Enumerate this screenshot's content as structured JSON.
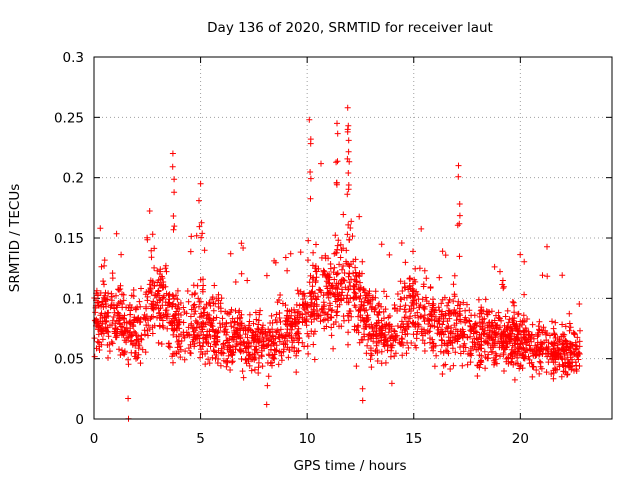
{
  "chart_data": {
    "type": "scatter",
    "title": "Day 136 of 2020, SRMTID for receiver laut",
    "xlabel": "GPS time / hours",
    "ylabel": "SRMTID / TECUs",
    "xlim": [
      0,
      24.3
    ],
    "ylim": [
      0,
      0.3
    ],
    "x_ticks": [
      0,
      5,
      10,
      15,
      20
    ],
    "x_tick_labels": [
      "0",
      "5",
      "10",
      "15",
      "20"
    ],
    "y_ticks": [
      0,
      0.05,
      0.1,
      0.15,
      0.2,
      0.25,
      0.3
    ],
    "y_tick_labels": [
      "0",
      "0.05",
      "0.1",
      "0.15",
      "0.2",
      "0.25",
      "0.3"
    ],
    "grid": true,
    "marker": "+",
    "series_color": "#ff0000",
    "density_profile": {
      "hours": [
        0,
        1,
        2,
        3,
        4,
        5,
        6,
        7,
        8,
        9,
        10,
        11,
        12,
        13,
        14,
        15,
        16,
        17,
        18,
        19,
        20,
        21,
        22,
        22.8
      ],
      "mean_value": [
        0.085,
        0.085,
        0.07,
        0.1,
        0.075,
        0.08,
        0.07,
        0.065,
        0.06,
        0.07,
        0.09,
        0.105,
        0.11,
        0.08,
        0.07,
        0.095,
        0.075,
        0.075,
        0.07,
        0.065,
        0.065,
        0.06,
        0.055,
        0.055
      ]
    },
    "notable_points": [
      {
        "x": 3.7,
        "y": 0.22
      },
      {
        "x": 5.0,
        "y": 0.195
      },
      {
        "x": 10.1,
        "y": 0.248
      },
      {
        "x": 11.4,
        "y": 0.245
      },
      {
        "x": 11.9,
        "y": 0.258
      },
      {
        "x": 11.9,
        "y": 0.24
      },
      {
        "x": 17.1,
        "y": 0.21
      },
      {
        "x": 8.1,
        "y": 0.012
      },
      {
        "x": 1.6,
        "y": 0.017
      },
      {
        "x": 12.6,
        "y": 0.025
      }
    ]
  }
}
